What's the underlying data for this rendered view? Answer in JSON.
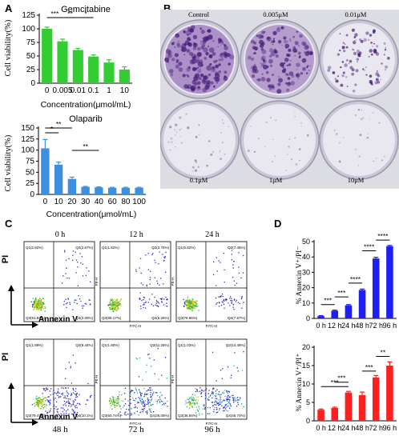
{
  "panels": {
    "A": "A",
    "B": "B",
    "C": "C",
    "D": "D"
  },
  "panel_a": {
    "gem": {
      "title": "Gemcitabine",
      "ylabel": "Cell viability(%)",
      "xlabel": "Concentration(μmol/mL)",
      "bar_color": "#33cc33",
      "sig": [
        "***",
        "**",
        "*"
      ]
    },
    "ola": {
      "title": "Olaparib",
      "ylabel": "Cell viability(%)",
      "xlabel": "Concentration(μmol/mL)",
      "bar_color": "#3d8fe0",
      "sig": [
        "*",
        "**",
        "**"
      ]
    }
  },
  "panel_b": {
    "dishes": [
      {
        "label": "Control",
        "density": 1.0
      },
      {
        "label": "0.005μM",
        "density": 0.85
      },
      {
        "label": "0.01μM",
        "density": 0.45
      },
      {
        "label": "0.1μM",
        "density": 0.12
      },
      {
        "label": "1μM",
        "density": 0.03
      },
      {
        "label": "10μM",
        "density": 0.02
      }
    ]
  },
  "panel_c": {
    "axis_x": "Annexin V",
    "axis_y": "PI",
    "plots": [
      {
        "time": "0 h",
        "pos": "top",
        "q1": "Q1(2.82%)",
        "q2": "Q2(2.67%)",
        "q3": "Q3(91.84%)",
        "q4": "Q4(2.00%)"
      },
      {
        "time": "12 h",
        "pos": "top",
        "q1": "Q1(1.82%)",
        "q2": "Q2(3.75%)",
        "q3": "Q3(89.17%)",
        "q4": "Q4(5.25%)"
      },
      {
        "time": "24 h",
        "pos": "top",
        "q1": "Q1(5.82%)",
        "q2": "Q2(7.45%)",
        "q3": "Q3(78.86%)",
        "q4": "Q4(7.87%)"
      },
      {
        "time": "48 h",
        "pos": "bottom",
        "q1": "Q1(1.89%)",
        "q2": "Q2(8.44%)",
        "q3": "Q3(79.47%)",
        "q4": "Q4(10.1%)"
      },
      {
        "time": "72 h",
        "pos": "bottom",
        "q1": "Q1(1.80%)",
        "q2": "Q2(11.28%)",
        "q3": "Q3(60.74%)",
        "q4": "Q4(26.05%)"
      },
      {
        "time": "96 h",
        "pos": "bottom",
        "q1": "Q1(1.03%)",
        "q2": "Q2(14.48%)",
        "q3": "Q3(36.94%)",
        "q4": "Q4(46.74%)"
      }
    ],
    "fitc": "FITC-H",
    "pe": "PE-H"
  },
  "panel_d": {
    "ylabel_top": "% Annexin V⁺/PI⁻",
    "ylabel_bottom": "% Annexin V⁺/PI⁺"
  },
  "chart_data": [
    {
      "type": "bar",
      "title": "Gemcitabine",
      "xlabel": "Concentration(μmol/mL)",
      "ylabel": "Cell viability(%)",
      "categories": [
        "0",
        "0.005",
        "0.01",
        "0.1",
        "1",
        "10"
      ],
      "values": [
        100,
        77,
        61,
        49,
        38,
        25
      ],
      "errors": [
        3,
        4,
        3,
        3,
        5,
        5
      ],
      "ylim": [
        0,
        125
      ],
      "yticks": [
        0,
        25,
        50,
        75,
        100,
        125
      ],
      "color": "#33cc33"
    },
    {
      "type": "bar",
      "title": "Olaparib",
      "xlabel": "Concentration(μmol/mL)",
      "ylabel": "Cell viability(%)",
      "categories": [
        "0",
        "10",
        "20",
        "30",
        "40",
        "60",
        "80",
        "100"
      ],
      "values": [
        104,
        67,
        35,
        17,
        16,
        15,
        15,
        15
      ],
      "errors": [
        20,
        6,
        4,
        1,
        1,
        1,
        1,
        1
      ],
      "ylim": [
        0,
        150
      ],
      "yticks": [
        0,
        25,
        50,
        75,
        100,
        125,
        150
      ],
      "color": "#3d8fe0"
    },
    {
      "type": "bar",
      "ylabel": "% Annexin V⁺/PI⁻",
      "categories": [
        "0 h",
        "12 h",
        "24 h",
        "48 h",
        "72 h",
        "96 h"
      ],
      "values": [
        1.5,
        5,
        8.5,
        18.5,
        39,
        47
      ],
      "errors": [
        0.3,
        0.4,
        0.5,
        0.6,
        0.8,
        0.5
      ],
      "ylim": [
        0,
        50
      ],
      "yticks": [
        0,
        10,
        20,
        30,
        40,
        50
      ],
      "color": "#1f1ff2",
      "sig": [
        "***",
        "***",
        "****",
        "****",
        "****"
      ]
    },
    {
      "type": "bar",
      "ylabel": "% Annexin V⁺/PI⁺",
      "categories": [
        "0 h",
        "12 h",
        "24 h",
        "48 h",
        "72 h",
        "96 h"
      ],
      "values": [
        3,
        3.5,
        7.7,
        7,
        11.8,
        15
      ],
      "errors": [
        0.2,
        0.2,
        0.3,
        0.8,
        0.5,
        1
      ],
      "ylim": [
        0,
        20
      ],
      "yticks": [
        0,
        5,
        10,
        15,
        20
      ],
      "color": "#ff1f1f",
      "sig": [
        "***",
        "***",
        "***",
        "**"
      ]
    }
  ]
}
